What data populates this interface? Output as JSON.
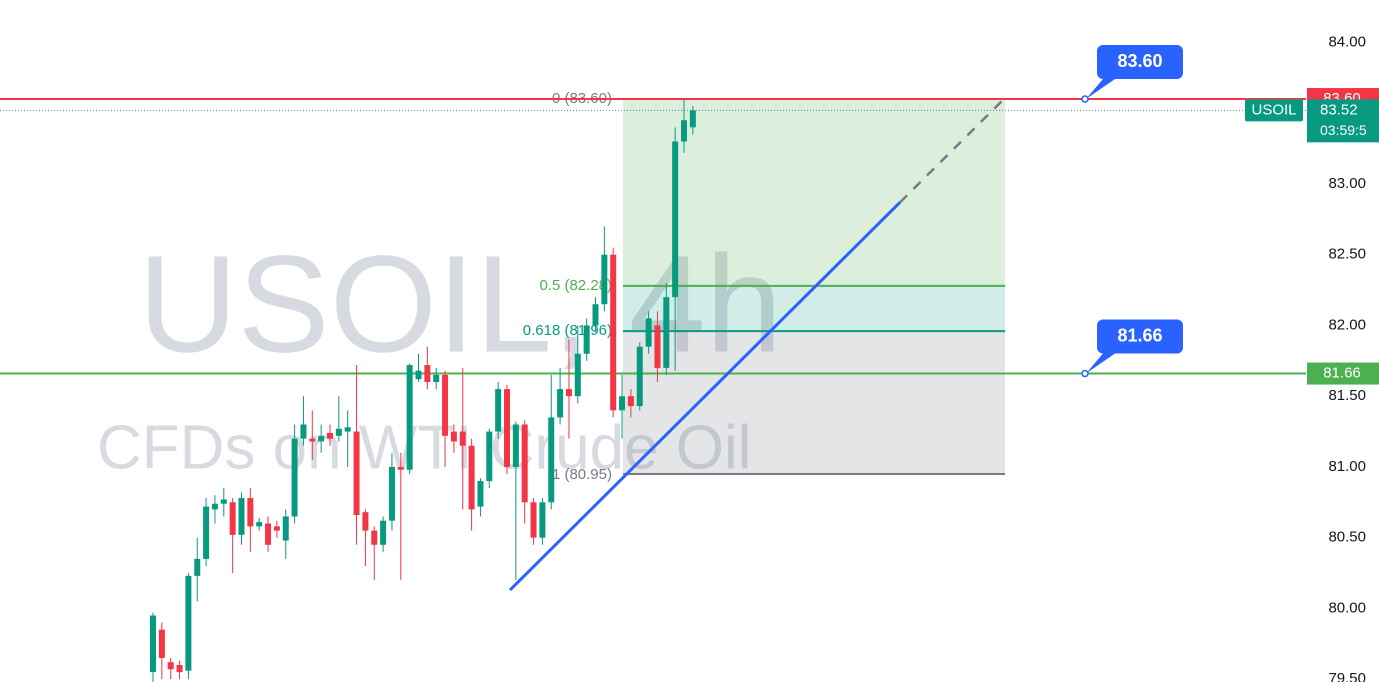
{
  "chart_data": {
    "type": "candlestick",
    "watermark_title": "USOIL, 4h",
    "watermark_subtitle": "CFDs on WTI Crude Oil",
    "ylim": [
      79.48,
      84.3
    ],
    "yticks": [
      {
        "value": 79.5,
        "label": "79.50"
      },
      {
        "value": 80,
        "label": "80.00"
      },
      {
        "value": 80.5,
        "label": "80.50"
      },
      {
        "value": 81,
        "label": "81.00"
      },
      {
        "value": 81.5,
        "label": "81.50"
      },
      {
        "value": 82,
        "label": "82.00"
      },
      {
        "value": 82.5,
        "label": "82.50"
      },
      {
        "value": 83,
        "label": "83.00"
      },
      {
        "value": 83.5,
        "label": "83.50"
      },
      {
        "value": 84,
        "label": "84.00"
      }
    ],
    "up_color": "#089981",
    "down_color": "#f23645",
    "open": [
      79.55,
      79.85,
      79.62,
      79.6,
      79.56,
      80.23,
      80.35,
      80.7,
      80.74,
      80.75,
      80.52,
      80.78,
      80.58,
      80.6,
      80.58,
      80.48,
      80.65,
      81.2,
      81.2,
      81.18,
      81.24,
      81.22,
      81.25,
      81.25,
      80.68,
      80.55,
      80.45,
      80.62,
      81.0,
      80.98,
      81.62,
      81.72,
      81.6,
      81.65,
      81.25,
      81.25,
      81.15,
      80.72,
      80.9,
      81.25,
      81.55,
      81.0,
      81.3,
      80.75,
      80.5,
      80.75,
      81.35,
      81.55,
      81.5,
      81.8,
      82.0,
      82.15,
      82.5,
      81.4,
      81.5,
      81.43,
      81.85,
      82.0,
      81.7,
      82.2,
      83.3,
      83.4
    ],
    "high": [
      79.97,
      79.9,
      79.65,
      79.63,
      80.25,
      80.5,
      80.78,
      80.8,
      80.85,
      80.78,
      80.82,
      80.85,
      80.64,
      80.65,
      80.62,
      80.7,
      81.3,
      81.5,
      81.4,
      81.3,
      81.3,
      81.5,
      81.4,
      81.72,
      80.7,
      80.58,
      80.65,
      81.1,
      81.1,
      81.73,
      81.8,
      81.85,
      81.7,
      81.68,
      81.3,
      81.7,
      81.2,
      80.92,
      81.27,
      81.6,
      81.58,
      81.32,
      81.33,
      80.78,
      80.78,
      81.65,
      81.7,
      81.9,
      82.0,
      82.05,
      82.2,
      82.7,
      82.55,
      81.65,
      81.55,
      81.88,
      82.1,
      82.1,
      82.3,
      83.4,
      83.6,
      83.55
    ],
    "low": [
      79.48,
      79.5,
      79.5,
      79.5,
      79.5,
      80.05,
      80.3,
      80.6,
      80.65,
      80.25,
      80.45,
      80.4,
      80.55,
      80.4,
      80.5,
      80.35,
      80.6,
      81.15,
      81.05,
      81.1,
      81.15,
      81.18,
      81.0,
      80.45,
      80.3,
      80.2,
      80.4,
      80.55,
      80.2,
      80.95,
      81.6,
      81.55,
      81.55,
      81.0,
      81.1,
      80.7,
      80.55,
      80.65,
      80.85,
      81.2,
      80.95,
      80.2,
      80.6,
      80.45,
      80.45,
      80.7,
      81.3,
      81.2,
      81.45,
      81.75,
      81.95,
      82.1,
      81.35,
      81.2,
      81.35,
      81.4,
      81.8,
      81.6,
      81.65,
      81.68,
      83.22,
      83.35
    ],
    "close": [
      79.95,
      79.65,
      79.57,
      79.55,
      80.23,
      80.35,
      80.72,
      80.74,
      80.77,
      80.52,
      80.78,
      80.58,
      80.61,
      80.45,
      80.55,
      80.65,
      81.2,
      81.3,
      81.18,
      81.22,
      81.2,
      81.27,
      81.28,
      80.66,
      80.55,
      80.45,
      80.62,
      81.0,
      80.98,
      81.72,
      81.68,
      81.6,
      81.65,
      81.22,
      81.18,
      81.15,
      80.7,
      80.9,
      81.25,
      81.55,
      81.0,
      81.3,
      80.75,
      80.5,
      80.75,
      81.35,
      81.55,
      81.5,
      81.8,
      82.0,
      82.15,
      82.5,
      81.4,
      81.5,
      81.43,
      81.85,
      82.05,
      81.7,
      82.2,
      83.3,
      83.45,
      83.52
    ],
    "fib_levels": [
      {
        "value": 83.6,
        "label": "0 (83.60)",
        "color": "#787b86"
      },
      {
        "value": 82.28,
        "label": "0.5 (82.28)",
        "color": "#4caf50"
      },
      {
        "value": 81.96,
        "label": "0.618 (81.96)",
        "color": "#089981"
      },
      {
        "value": 80.95,
        "label": "1 (80.95)",
        "color": "#787b86"
      }
    ],
    "horizontal_lines": [
      {
        "value": 83.6,
        "label": "83.60",
        "color": "#f23645"
      },
      {
        "value": 81.66,
        "label": "81.66",
        "color": "#4caf50"
      }
    ],
    "trendline": {
      "start": 80.13,
      "end": 82.87,
      "projected_end": 83.6,
      "color": "#2962ff"
    },
    "last_price": {
      "symbol": "USOIL",
      "value": 83.52,
      "label": "83.52",
      "countdown": "03:59:5"
    }
  }
}
